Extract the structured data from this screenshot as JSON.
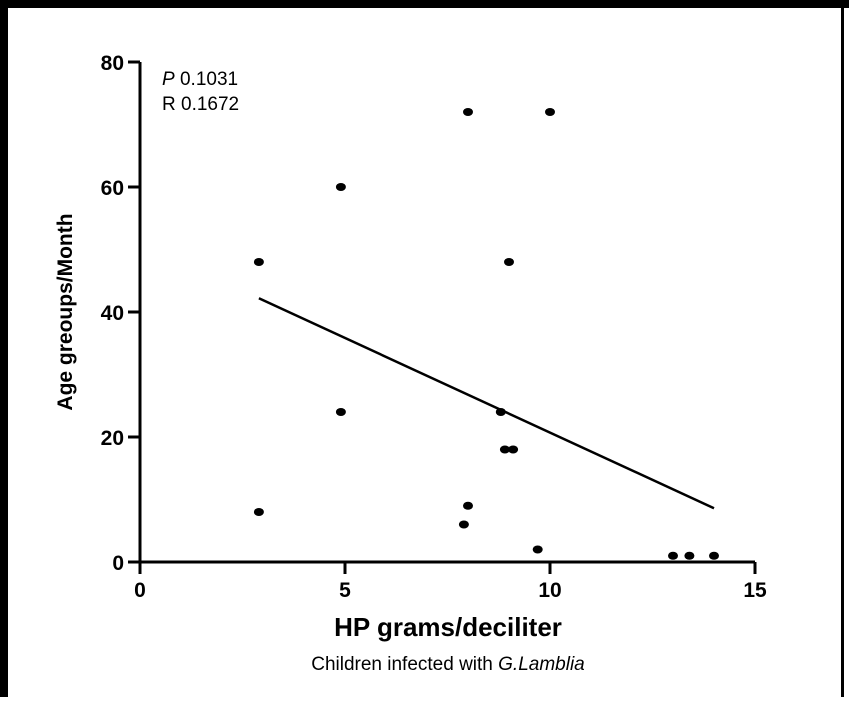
{
  "chart_data": {
    "type": "scatter",
    "x_label": "HP grams/deciliter",
    "y_label": "Age greoups/Month",
    "caption": "Children infected with",
    "caption_species": "G.Lamblia",
    "annotations": [
      {
        "symbol": "P",
        "text": "0.1031"
      },
      {
        "symbol": "R",
        "text": "0.1672"
      }
    ],
    "color": "#000000",
    "x": [
      2.9,
      2.9,
      4.9,
      4.9,
      8.0,
      10.0,
      9.0,
      8.8,
      8.9,
      9.1,
      8.0,
      7.9,
      9.7,
      13.0,
      13.4,
      14.0
    ],
    "values": [
      48,
      8,
      60,
      24,
      72,
      72,
      48,
      24,
      18,
      18,
      9,
      6,
      2,
      1,
      1,
      1
    ],
    "fit_line": {
      "x": [
        2.9,
        14.0
      ],
      "y": [
        42.2,
        8.6
      ]
    },
    "xlim": [
      0,
      15
    ],
    "xticks": [
      0,
      5,
      10,
      15
    ],
    "ylim": [
      0,
      80
    ],
    "yticks": [
      0,
      20,
      40,
      60,
      80
    ],
    "grid": false
  }
}
